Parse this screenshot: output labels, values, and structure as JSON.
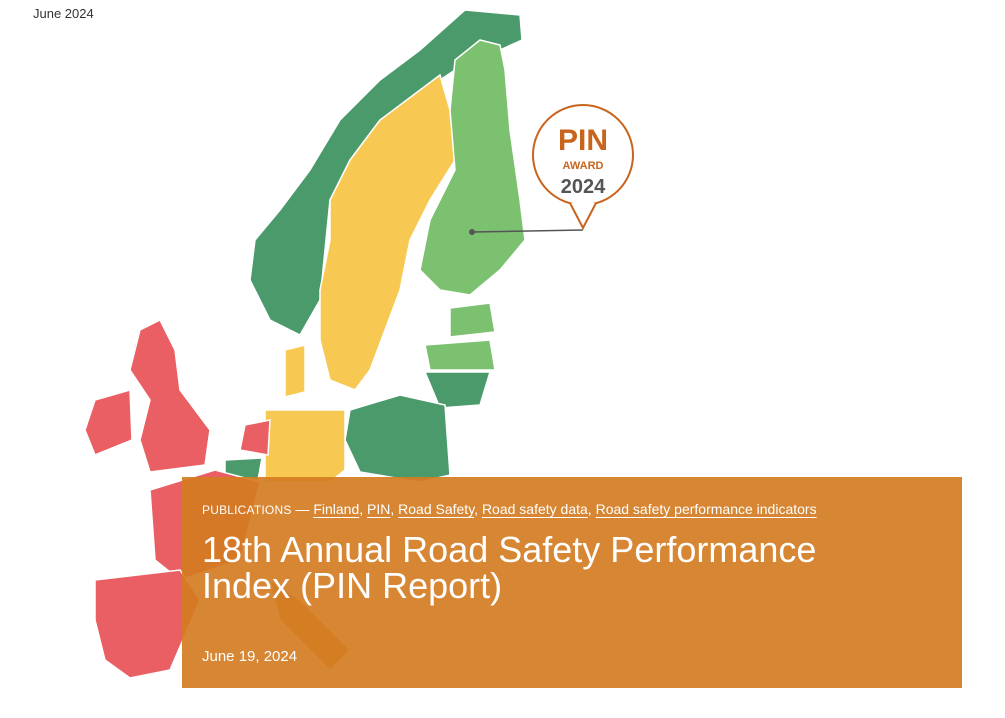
{
  "header": {
    "date": "June 2024"
  },
  "badge": {
    "title": "PIN",
    "subtitle": "AWARD",
    "year": "2024"
  },
  "article": {
    "category": "PUBLICATIONS",
    "dash": "—",
    "tags": [
      "Finland",
      "PIN",
      "Road Safety",
      "Road safety data",
      "Road safety performance indicators"
    ],
    "separator": ",",
    "title": "18th Annual Road Safety Performance Index (PIN Report)",
    "date": "June 19, 2024"
  }
}
